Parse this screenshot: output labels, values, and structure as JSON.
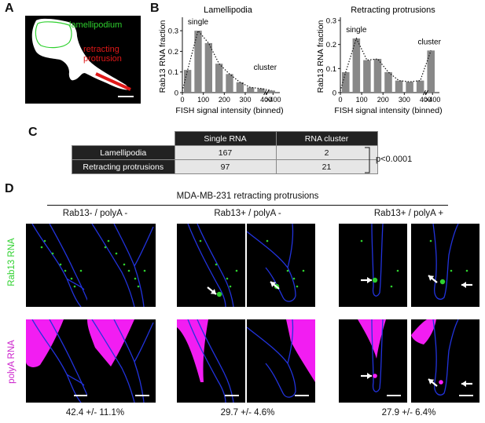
{
  "panels": {
    "a": "A",
    "b": "B",
    "c": "C",
    "d": "D"
  },
  "panel_a": {
    "lamellipodium": "lamellipodium",
    "retracting": "retracting",
    "protrusion": "protrusion"
  },
  "chart_data": [
    {
      "type": "bar",
      "title": "Lamellipodia",
      "xlabel": "FISH signal intensity (binned)",
      "ylabel": "Rab13 RNA fraction",
      "categories": [
        "25",
        "75",
        "125",
        "175",
        "225",
        "275",
        "325",
        "375",
        ">400"
      ],
      "values": [
        0.11,
        0.3,
        0.24,
        0.14,
        0.09,
        0.05,
        0.025,
        0.02,
        0.01
      ],
      "xticks": [
        "0",
        "100",
        "200",
        "300",
        "400",
        ">400"
      ],
      "yticks": [
        "0",
        "0.1",
        "0.2",
        "0.3"
      ],
      "ylim": [
        0,
        0.35
      ],
      "annotations": [
        "single",
        "cluster"
      ]
    },
    {
      "type": "bar",
      "title": "Retracting protrusions",
      "xlabel": "FISH signal intensity (binned)",
      "ylabel": "Rab13 RNA fraction",
      "categories": [
        "25",
        "75",
        "125",
        "175",
        "225",
        "275",
        "325",
        "375",
        ">400"
      ],
      "values": [
        0.085,
        0.225,
        0.135,
        0.14,
        0.085,
        0.05,
        0.045,
        0.05,
        0.175
      ],
      "xticks": [
        "0",
        "100",
        "200",
        "300",
        "400",
        ">400"
      ],
      "yticks": [
        "0",
        "0.1",
        "0.2",
        "0.3"
      ],
      "ylim": [
        0,
        0.3
      ],
      "annotations": [
        "single",
        "cluster"
      ]
    }
  ],
  "table": {
    "headers": [
      "Single RNA",
      "RNA cluster"
    ],
    "rows": [
      {
        "label": "Lamellipodia",
        "values": [
          "167",
          "2"
        ]
      },
      {
        "label": "Retracting protrusions",
        "values": [
          "97",
          "21"
        ]
      }
    ],
    "pvalue": "p<0.0001"
  },
  "panel_d": {
    "title": "MDA-MB-231 retracting protrusions",
    "groups": [
      "Rab13- / polyA -",
      "Rab13+ / polyA -",
      "Rab13+ / polyA +"
    ],
    "row_labels": [
      "Rab13 RNA",
      "polyA RNA"
    ],
    "percentages": [
      "42.4 +/- 11.1%",
      "29.7 +/- 4.6%",
      "27.9 +/- 6.4%"
    ]
  },
  "colors": {
    "green": "#2fd12f",
    "magenta": "#ff1fff",
    "red": "#e01818",
    "blue": "#2233dd",
    "bar": "#888888"
  }
}
